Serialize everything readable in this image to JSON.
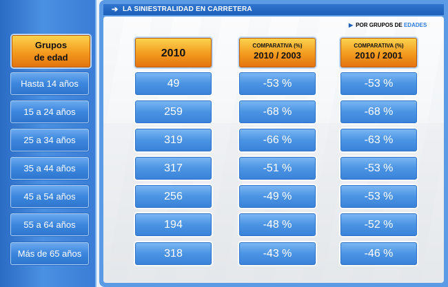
{
  "title": "LA SINIESTRALIDAD EN CARRETERA",
  "subtitle": {
    "prefix": "POR GRUPOS DE ",
    "accent": "EDADES"
  },
  "headers": {
    "groups": [
      "Grupos",
      "de edad"
    ],
    "year": "2010",
    "cmp1": {
      "small": "COMPARATIVA (%)",
      "big": "2010 / 2003"
    },
    "cmp2": {
      "small": "COMPARATIVA (%)",
      "big": "2010 / 2001"
    }
  },
  "rows": [
    {
      "label": "Hasta 14 años",
      "value": "49",
      "cmp1": "-53 %",
      "cmp2": "-53 %"
    },
    {
      "label": "15 a 24 años",
      "value": "259",
      "cmp1": "-68 %",
      "cmp2": "-68 %"
    },
    {
      "label": "25 a 34 años",
      "value": "319",
      "cmp1": "-66 %",
      "cmp2": "-63 %"
    },
    {
      "label": "35 a 44 años",
      "value": "317",
      "cmp1": "-51 %",
      "cmp2": "-53 %"
    },
    {
      "label": "45 a 54 años",
      "value": "256",
      "cmp1": "-49 %",
      "cmp2": "-53 %"
    },
    {
      "label": "55 a 64 años",
      "value": "194",
      "cmp1": "-48 %",
      "cmp2": "-52 %"
    },
    {
      "label": "Más de 65 años",
      "value": "318",
      "cmp1": "-43 %",
      "cmp2": "-46 %"
    }
  ]
}
